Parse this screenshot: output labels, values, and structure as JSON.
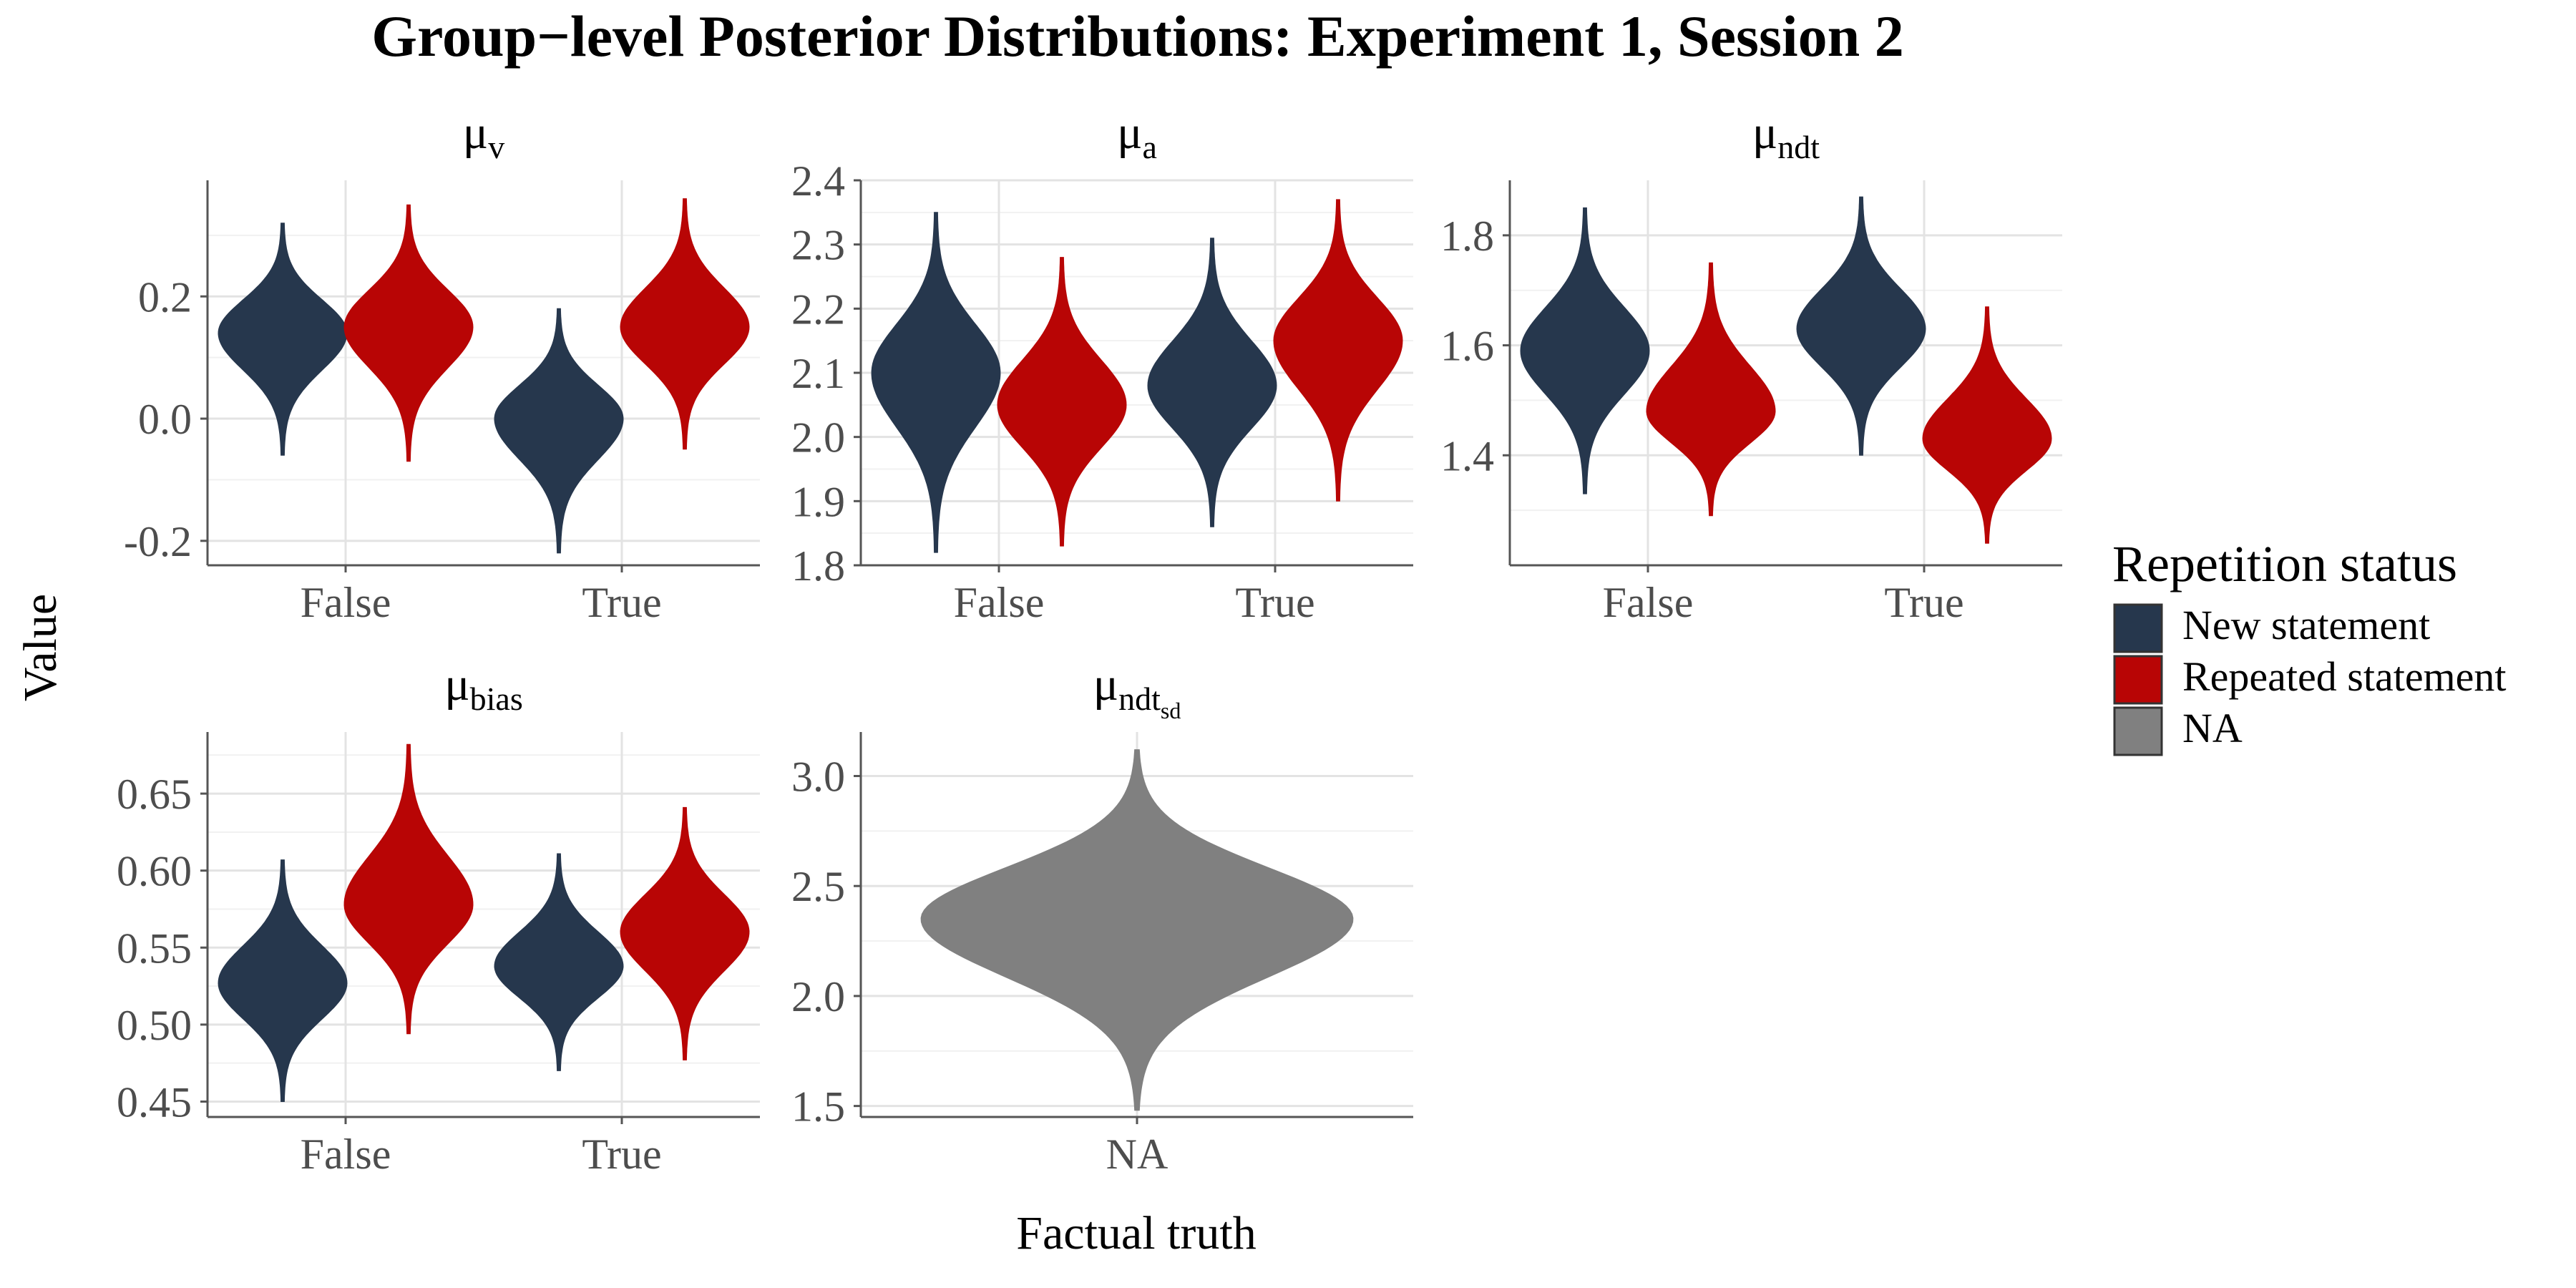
{
  "title": "Group−level Posterior Distributions: Experiment 1, Session 2",
  "ylabel": "Value",
  "xlabel": "Factual truth",
  "legend": {
    "title": "Repetition status",
    "position": "right",
    "items": [
      {
        "label": "New statement",
        "color": "#26374D"
      },
      {
        "label": "Repeated statement",
        "color": "#B80505"
      },
      {
        "label": "NA",
        "color": "#808080"
      }
    ]
  },
  "colors": {
    "New statement": "#26374D",
    "Repeated statement": "#B80505",
    "NA": "#808080",
    "grid_major": "#E3E3E3",
    "grid_minor": "#F1F1F1",
    "axis": "#555555",
    "tick_text": "#4D4D4D"
  },
  "chart_data": [
    {
      "type": "violin",
      "panel_title": "μ",
      "panel_sub": "v",
      "categories": [
        "False",
        "True"
      ],
      "ylim": [
        -0.24,
        0.39
      ],
      "yticks": [
        -0.2,
        0.0,
        0.2
      ],
      "ytick_labels": [
        "-0.2",
        "0.0",
        "0.2"
      ],
      "grid": true,
      "series": [
        {
          "name": "New statement",
          "distributions": [
            {
              "category": "False",
              "min": -0.06,
              "center": 0.14,
              "max": 0.32
            },
            {
              "category": "True",
              "min": -0.22,
              "center": 0.0,
              "max": 0.18
            }
          ]
        },
        {
          "name": "Repeated statement",
          "distributions": [
            {
              "category": "False",
              "min": -0.07,
              "center": 0.15,
              "max": 0.35
            },
            {
              "category": "True",
              "min": -0.05,
              "center": 0.15,
              "max": 0.36
            }
          ]
        }
      ]
    },
    {
      "type": "violin",
      "panel_title": "μ",
      "panel_sub": "a",
      "categories": [
        "False",
        "True"
      ],
      "ylim": [
        1.8,
        2.4
      ],
      "yticks": [
        1.8,
        1.9,
        2.0,
        2.1,
        2.2,
        2.3,
        2.4
      ],
      "ytick_labels": [
        "1.8",
        "1.9",
        "2.0",
        "2.1",
        "2.2",
        "2.3",
        "2.4"
      ],
      "grid": true,
      "series": [
        {
          "name": "New statement",
          "distributions": [
            {
              "category": "False",
              "min": 1.82,
              "center": 2.1,
              "max": 2.35
            },
            {
              "category": "True",
              "min": 1.86,
              "center": 2.08,
              "max": 2.31
            }
          ]
        },
        {
          "name": "Repeated statement",
          "distributions": [
            {
              "category": "False",
              "min": 1.83,
              "center": 2.05,
              "max": 2.28
            },
            {
              "category": "True",
              "min": 1.9,
              "center": 2.15,
              "max": 2.37
            }
          ]
        }
      ]
    },
    {
      "type": "violin",
      "panel_title": "μ",
      "panel_sub": "ndt",
      "categories": [
        "False",
        "True"
      ],
      "ylim": [
        1.2,
        1.9
      ],
      "yticks": [
        1.4,
        1.6,
        1.8
      ],
      "ytick_labels": [
        "1.4",
        "1.6",
        "1.8"
      ],
      "grid": true,
      "series": [
        {
          "name": "New statement",
          "distributions": [
            {
              "category": "False",
              "min": 1.33,
              "center": 1.59,
              "max": 1.85
            },
            {
              "category": "True",
              "min": 1.4,
              "center": 1.63,
              "max": 1.87
            }
          ]
        },
        {
          "name": "Repeated statement",
          "distributions": [
            {
              "category": "False",
              "min": 1.29,
              "center": 1.48,
              "max": 1.75
            },
            {
              "category": "True",
              "min": 1.24,
              "center": 1.43,
              "max": 1.67
            }
          ]
        }
      ]
    },
    {
      "type": "violin",
      "panel_title": "μ",
      "panel_sub": "bias",
      "categories": [
        "False",
        "True"
      ],
      "ylim": [
        0.44,
        0.69
      ],
      "yticks": [
        0.45,
        0.5,
        0.55,
        0.6,
        0.65
      ],
      "ytick_labels": [
        "0.45",
        "0.50",
        "0.55",
        "0.60",
        "0.65"
      ],
      "grid": true,
      "series": [
        {
          "name": "New statement",
          "distributions": [
            {
              "category": "False",
              "min": 0.45,
              "center": 0.527,
              "max": 0.607
            },
            {
              "category": "True",
              "min": 0.47,
              "center": 0.538,
              "max": 0.611
            }
          ]
        },
        {
          "name": "Repeated statement",
          "distributions": [
            {
              "category": "False",
              "min": 0.494,
              "center": 0.578,
              "max": 0.682
            },
            {
              "category": "True",
              "min": 0.477,
              "center": 0.56,
              "max": 0.641
            }
          ]
        }
      ]
    },
    {
      "type": "violin",
      "panel_title": "μ",
      "panel_sub": "ndt",
      "panel_subsub": "sd",
      "categories": [
        "NA"
      ],
      "ylim": [
        1.45,
        3.2
      ],
      "yticks": [
        1.5,
        2.0,
        2.5,
        3.0
      ],
      "ytick_labels": [
        "1.5",
        "2.0",
        "2.5",
        "3.0"
      ],
      "grid": true,
      "series": [
        {
          "name": "NA",
          "distributions": [
            {
              "category": "NA",
              "min": 1.48,
              "center": 2.35,
              "max": 3.12
            }
          ]
        }
      ]
    }
  ]
}
